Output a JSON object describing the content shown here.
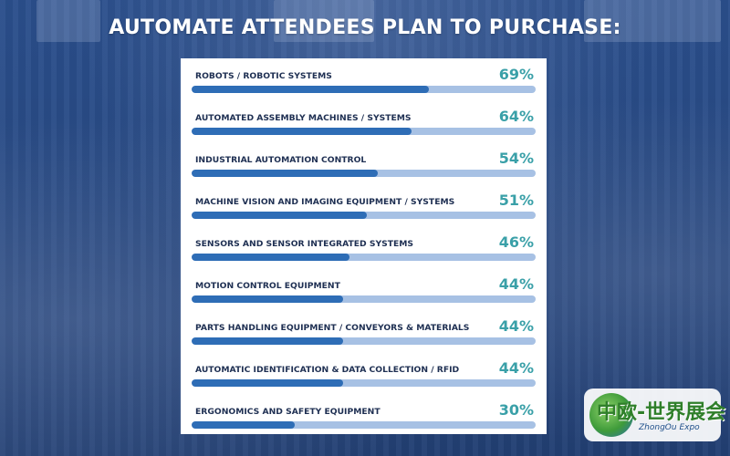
{
  "colors": {
    "background": "#1f3d72",
    "bar_fill": "#2e6db6",
    "bar_track": "#a7c1e4",
    "value_text": "#3aa0a8",
    "label_text": "#1e2f52"
  },
  "logo": {
    "chinese_text": "中欧-世界展会",
    "english_text": "ZhongOu Expo"
  },
  "chart_data": {
    "type": "bar",
    "title": "AUTOMATE ATTENDEES PLAN TO PURCHASE:",
    "orientation": "horizontal",
    "unit": "%",
    "xlim": [
      0,
      100
    ],
    "grid": false,
    "categories": [
      "ROBOTS / ROBOTIC SYSTEMS",
      "AUTOMATED ASSEMBLY MACHINES / SYSTEMS",
      "INDUSTRIAL AUTOMATION CONTROL",
      "MACHINE VISION AND IMAGING EQUIPMENT / SYSTEMS",
      "SENSORS AND SENSOR INTEGRATED SYSTEMS",
      "MOTION CONTROL EQUIPMENT",
      "PARTS HANDLING EQUIPMENT / CONVEYORS & MATERIALS",
      "AUTOMATIC IDENTIFICATION & DATA COLLECTION / RFID",
      "ERGONOMICS AND SAFETY EQUIPMENT"
    ],
    "values": [
      69,
      64,
      54,
      51,
      46,
      44,
      44,
      44,
      30
    ],
    "value_labels": [
      "69%",
      "64%",
      "54%",
      "51%",
      "46%",
      "44%",
      "44%",
      "44%",
      "30%"
    ]
  }
}
